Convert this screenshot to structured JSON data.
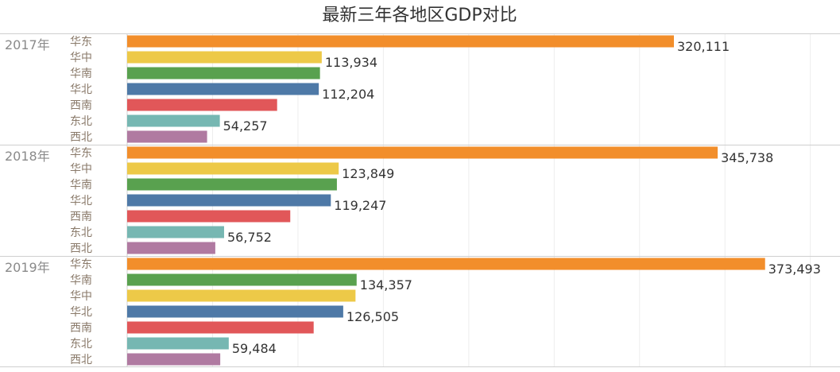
{
  "chart_data": {
    "type": "bar",
    "orientation": "horizontal",
    "title": "最新三年各地区GDP对比",
    "xlim": [
      0,
      400000
    ],
    "grid": true,
    "colors": {
      "华东": "#f28e2b",
      "华中": "#edc948",
      "华南": "#59a14f",
      "华北": "#4e79a7",
      "西南": "#e15759",
      "东北": "#76b7b2",
      "西北": "#b07aa1"
    },
    "groups": [
      {
        "label": "2017年",
        "rows": [
          {
            "region": "华东",
            "value": 320111,
            "label": "320,111"
          },
          {
            "region": "华中",
            "value": 113934,
            "label": "113,934"
          },
          {
            "region": "华南",
            "value": 112900,
            "label": ""
          },
          {
            "region": "华北",
            "value": 112204,
            "label": "112,204"
          },
          {
            "region": "西南",
            "value": 87800,
            "label": ""
          },
          {
            "region": "东北",
            "value": 54257,
            "label": "54,257"
          },
          {
            "region": "西北",
            "value": 46800,
            "label": ""
          }
        ]
      },
      {
        "label": "2018年",
        "rows": [
          {
            "region": "华东",
            "value": 345738,
            "label": "345,738"
          },
          {
            "region": "华中",
            "value": 123849,
            "label": "123,849"
          },
          {
            "region": "华南",
            "value": 122800,
            "label": ""
          },
          {
            "region": "华北",
            "value": 119247,
            "label": "119,247"
          },
          {
            "region": "西南",
            "value": 95500,
            "label": ""
          },
          {
            "region": "东北",
            "value": 56752,
            "label": "56,752"
          },
          {
            "region": "西北",
            "value": 51600,
            "label": ""
          }
        ]
      },
      {
        "label": "2019年",
        "rows": [
          {
            "region": "华东",
            "value": 373493,
            "label": "373,493"
          },
          {
            "region": "华南",
            "value": 134357,
            "label": "134,357"
          },
          {
            "region": "华中",
            "value": 133700,
            "label": ""
          },
          {
            "region": "华北",
            "value": 126505,
            "label": "126,505"
          },
          {
            "region": "西南",
            "value": 109200,
            "label": ""
          },
          {
            "region": "东北",
            "value": 59484,
            "label": "59,484"
          },
          {
            "region": "西北",
            "value": 54500,
            "label": ""
          }
        ]
      }
    ]
  }
}
